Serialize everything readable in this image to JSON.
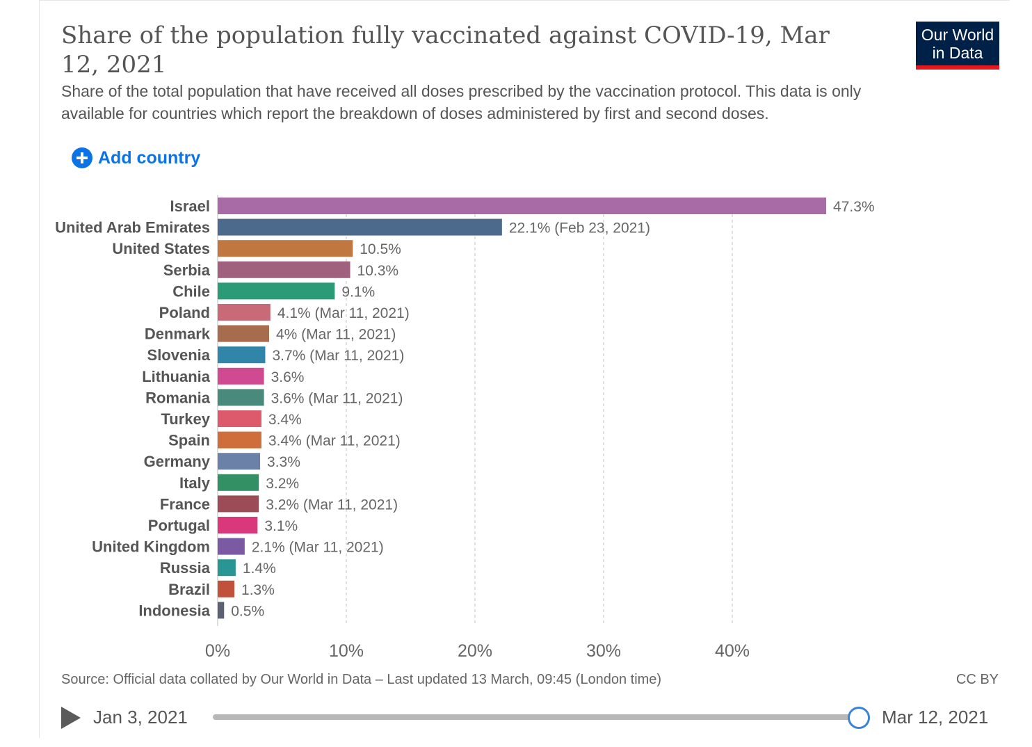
{
  "header": {
    "title": "Share of the population fully vaccinated against COVID-19, Mar 12, 2021",
    "subtitle": "Share of the total population that have received all doses prescribed by the vaccination protocol. This data is only available for countries which report the breakdown of doses administered by first and second doses.",
    "logo_line1": "Our World",
    "logo_line2": "in Data"
  },
  "controls": {
    "add_country_label": "Add country",
    "add_icon": "plus-circle-icon"
  },
  "chart_data": {
    "type": "bar",
    "orientation": "horizontal",
    "categories": [
      "Israel",
      "United Arab Emirates",
      "United States",
      "Serbia",
      "Chile",
      "Poland",
      "Denmark",
      "Slovenia",
      "Lithuania",
      "Romania",
      "Turkey",
      "Spain",
      "Germany",
      "Italy",
      "France",
      "Portugal",
      "United Kingdom",
      "Russia",
      "Brazil",
      "Indonesia"
    ],
    "values": [
      47.3,
      22.1,
      10.5,
      10.3,
      9.1,
      4.1,
      4.0,
      3.7,
      3.6,
      3.6,
      3.4,
      3.4,
      3.3,
      3.2,
      3.2,
      3.1,
      2.1,
      1.4,
      1.3,
      0.5
    ],
    "value_labels": [
      "47.3%",
      "22.1% (Feb 23, 2021)",
      "10.5%",
      "10.3%",
      "9.1%",
      "4.1% (Mar 11, 2021)",
      "4% (Mar 11, 2021)",
      "3.7% (Mar 11, 2021)",
      "3.6%",
      "3.6% (Mar 11, 2021)",
      "3.4%",
      "3.4% (Mar 11, 2021)",
      "3.3%",
      "3.2%",
      "3.2% (Mar 11, 2021)",
      "3.1%",
      "2.1% (Mar 11, 2021)",
      "1.4%",
      "1.3%",
      "0.5%"
    ],
    "colors": [
      "#a86ba5",
      "#4c6a8c",
      "#c07740",
      "#a0617f",
      "#2b9a76",
      "#c96a78",
      "#a76b4e",
      "#3185a9",
      "#d04a92",
      "#4a8a7c",
      "#dd5a6c",
      "#cf6e3a",
      "#6b81a8",
      "#339064",
      "#9b4c57",
      "#d9387a",
      "#7c5aa3",
      "#2a9693",
      "#c1513a",
      "#5a6173"
    ],
    "xlim": [
      0,
      50
    ],
    "xticks": [
      0,
      10,
      20,
      30,
      40
    ],
    "xtick_labels": [
      "0%",
      "10%",
      "20%",
      "30%",
      "40%"
    ],
    "grid": true,
    "title": "Share of the population fully vaccinated against COVID-19, Mar 12, 2021",
    "xlabel": "",
    "ylabel": ""
  },
  "footer": {
    "source": "Source: Official data collated by Our World in Data – Last updated 13 March, 09:45 (London time)",
    "license": "CC BY"
  },
  "timeline": {
    "start_label": "Jan 3, 2021",
    "end_label": "Mar 12, 2021",
    "position": 1.0
  }
}
